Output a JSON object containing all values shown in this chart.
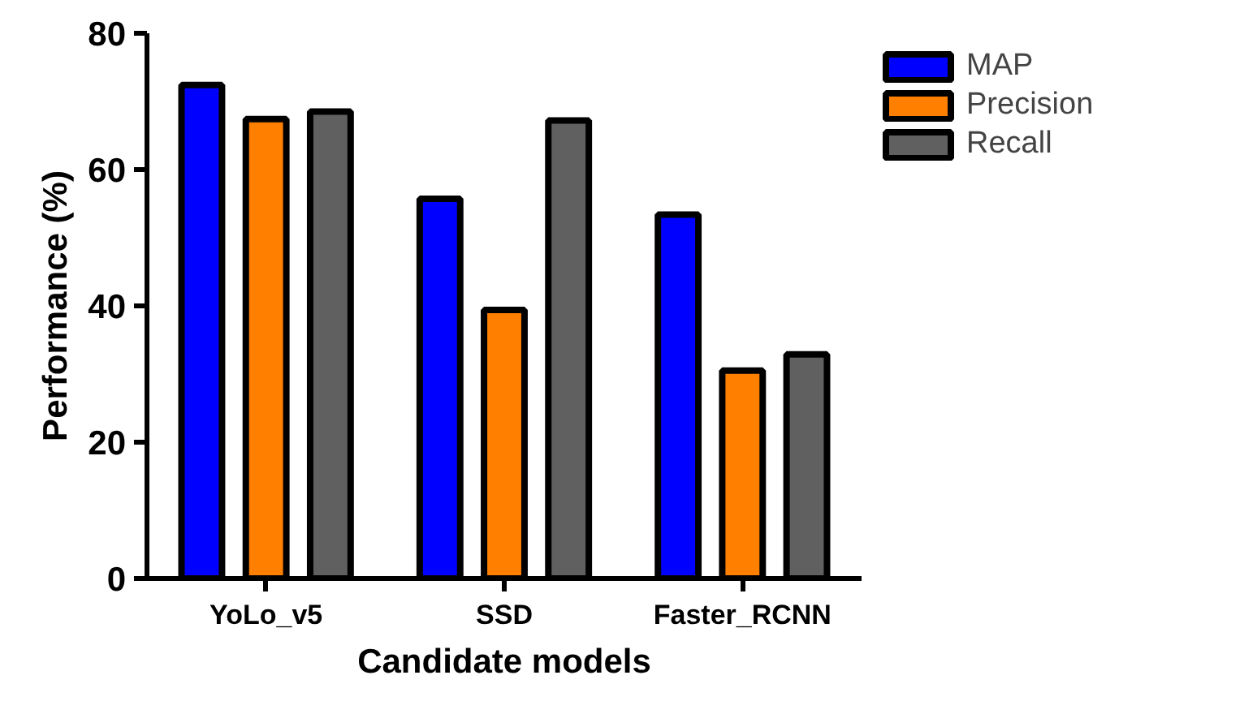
{
  "chart_data": {
    "type": "bar",
    "xlabel": "Candidate models",
    "ylabel": "Performance (%)",
    "categories": [
      "YoLo_v5",
      "SSD",
      "Faster_RCNN"
    ],
    "series": [
      {
        "name": "MAP",
        "color": "#0000ff",
        "values": [
          72.4,
          55.7,
          53.4
        ]
      },
      {
        "name": "Precision",
        "color": "#ff8000",
        "values": [
          67.4,
          39.4,
          30.5
        ]
      },
      {
        "name": "Recall",
        "color": "#606060",
        "values": [
          68.5,
          67.2,
          32.9
        ]
      }
    ],
    "ylim": [
      0,
      80
    ],
    "yticks": [
      0,
      20,
      40,
      60,
      80
    ],
    "grid": false,
    "legend": "top right"
  }
}
